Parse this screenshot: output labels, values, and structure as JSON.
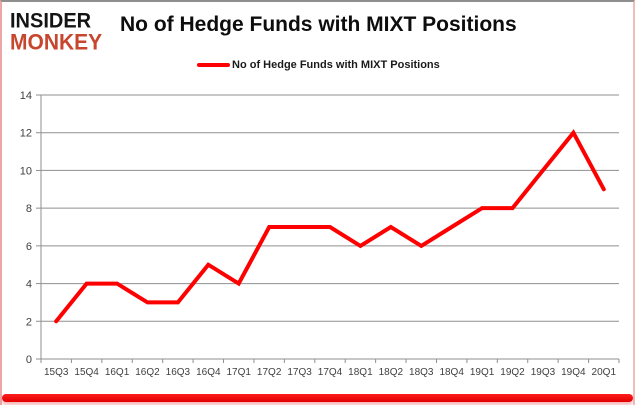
{
  "logo": {
    "line1": "INSIDER",
    "line2": "MONKEY"
  },
  "header": {
    "title": "No of Hedge Funds with MIXT Positions"
  },
  "legend": {
    "label": "No of Hedge Funds with MIXT Positions",
    "marker_color": "#ff0000"
  },
  "chart_data": {
    "type": "line",
    "title": "No of Hedge Funds with MIXT Positions",
    "categories": [
      "15Q3",
      "15Q4",
      "16Q1",
      "16Q2",
      "16Q3",
      "16Q4",
      "17Q1",
      "17Q2",
      "17Q3",
      "17Q4",
      "18Q1",
      "18Q2",
      "18Q3",
      "18Q4",
      "19Q1",
      "19Q2",
      "19Q3",
      "19Q4",
      "20Q1"
    ],
    "series": [
      {
        "name": "No of Hedge Funds with MIXT Positions",
        "values": [
          2,
          4,
          4,
          3,
          3,
          5,
          4,
          7,
          7,
          7,
          6,
          7,
          6,
          7,
          8,
          8,
          10,
          12,
          9
        ],
        "color": "#ff0000"
      }
    ],
    "xlabel": "",
    "ylabel": "",
    "ylim": [
      0,
      14
    ],
    "ytick_step": 2,
    "grid": true,
    "legend_position": "top-center"
  },
  "colors": {
    "line_red": "#ff0000",
    "logo_red": "#c7462e",
    "grid_gray": "#8f8f8f",
    "axis_text": "#3f3f3f",
    "title_text": "#0d0d0d",
    "bottom_bar_red": "#e80000",
    "side_border_pink": "#eba6a6",
    "top_border_gray": "#8f8f8f"
  }
}
